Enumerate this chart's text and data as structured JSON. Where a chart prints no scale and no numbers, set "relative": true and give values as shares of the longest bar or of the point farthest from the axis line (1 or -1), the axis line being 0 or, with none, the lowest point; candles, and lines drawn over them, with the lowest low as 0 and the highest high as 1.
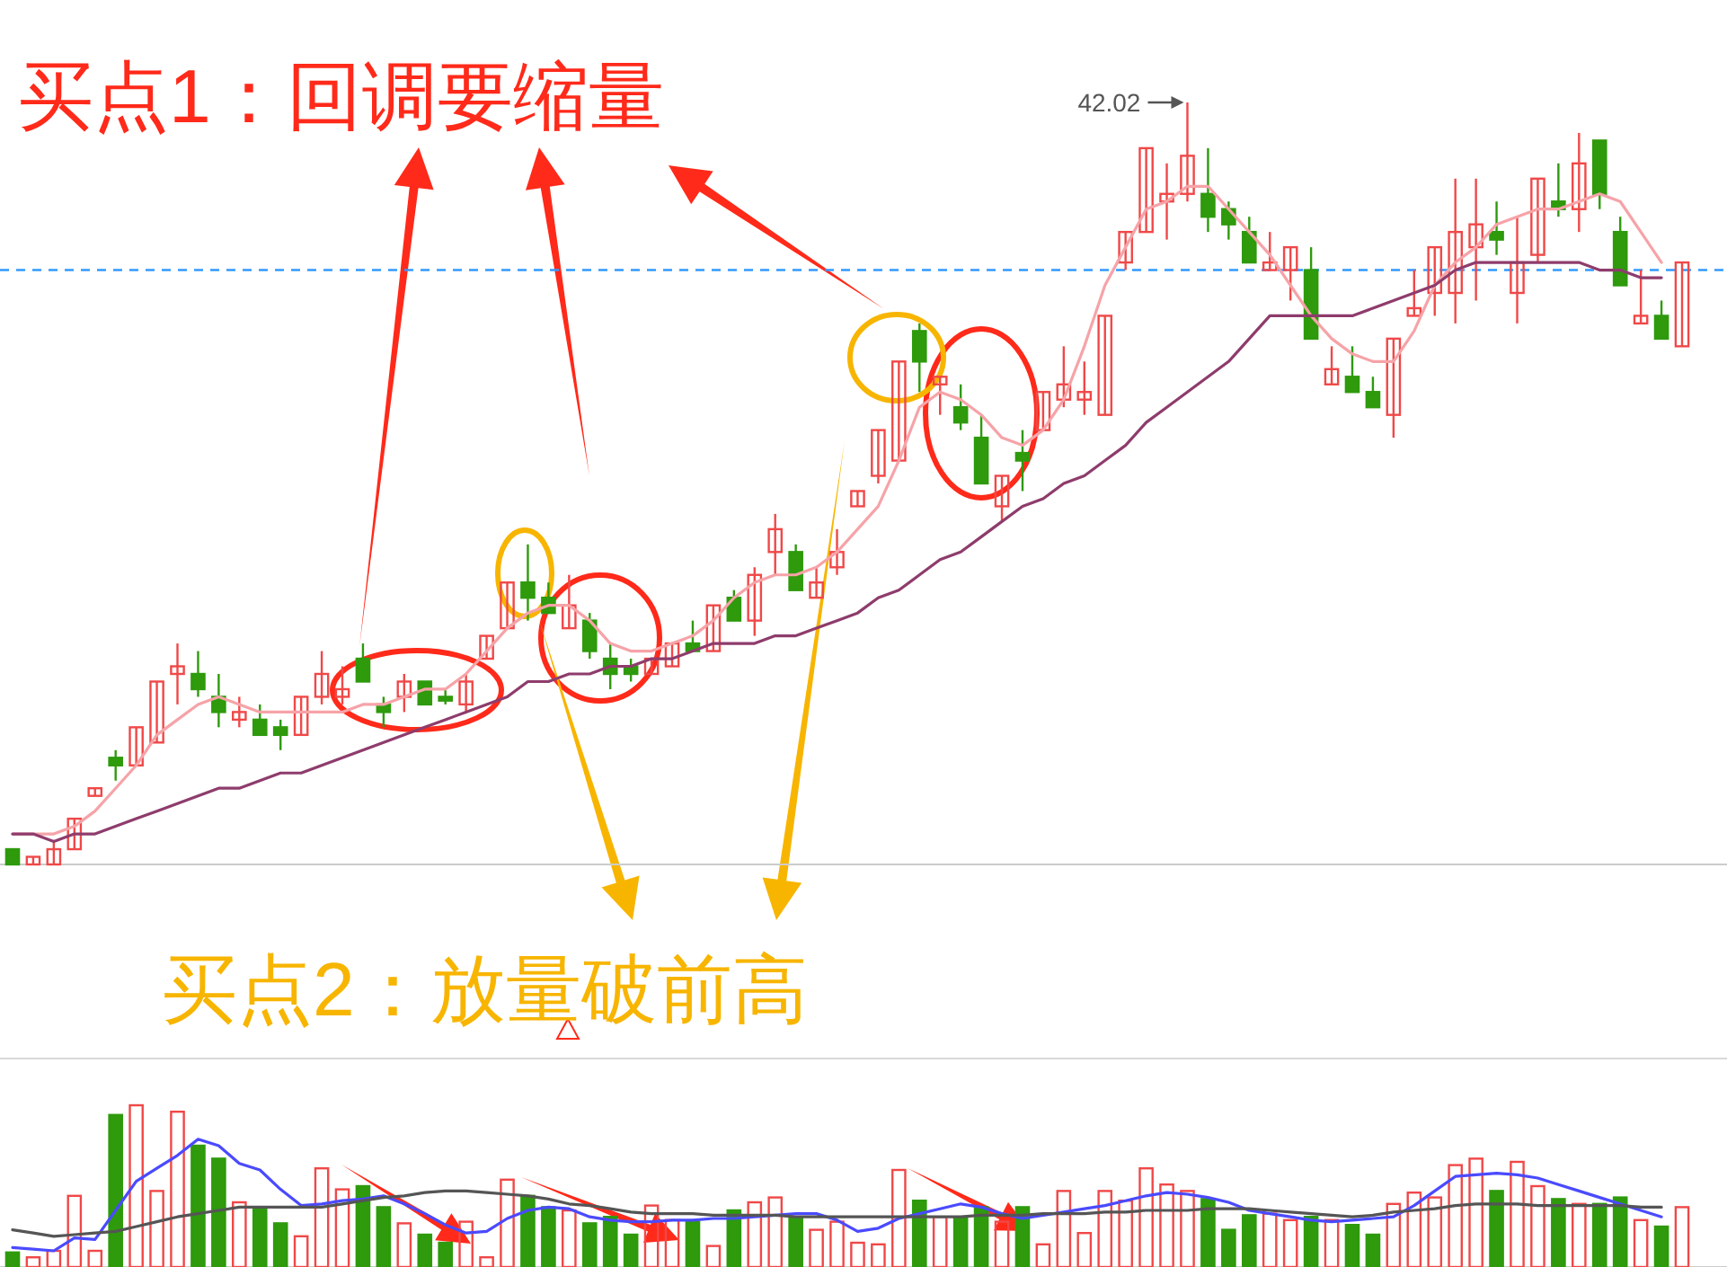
{
  "chart_data": [
    {
      "type": "candlestick",
      "relative": true,
      "categories": [
        null,
        null,
        null,
        null,
        null,
        null,
        null,
        null,
        null,
        null,
        null,
        null,
        null,
        null,
        null,
        null,
        null,
        null,
        null,
        null,
        null,
        null,
        null,
        null,
        null,
        null,
        null,
        null,
        null,
        null,
        null,
        null,
        null,
        null,
        null,
        null,
        null,
        null,
        null,
        null,
        null,
        null,
        null,
        null,
        null,
        null,
        null,
        null,
        null,
        null,
        null,
        null,
        null,
        null,
        null,
        null,
        null,
        null,
        null,
        null,
        null,
        null,
        null,
        null,
        null,
        null,
        null,
        null,
        null,
        null,
        null,
        null,
        null,
        null,
        null,
        null,
        null,
        null,
        null,
        null,
        null,
        null
      ],
      "ohlc": [
        [
          0.02,
          0.02,
          0.0,
          0.0
        ],
        [
          0.0,
          0.01,
          0.0,
          0.01
        ],
        [
          0.0,
          0.03,
          0.0,
          0.02
        ],
        [
          0.02,
          0.06,
          0.02,
          0.06
        ],
        [
          0.09,
          0.1,
          0.09,
          0.1
        ],
        [
          0.14,
          0.15,
          0.11,
          0.13
        ],
        [
          0.13,
          0.18,
          0.13,
          0.18
        ],
        [
          0.16,
          0.24,
          0.16,
          0.24
        ],
        [
          0.25,
          0.29,
          0.21,
          0.26
        ],
        [
          0.25,
          0.28,
          0.22,
          0.23
        ],
        [
          0.22,
          0.25,
          0.18,
          0.2
        ],
        [
          0.19,
          0.22,
          0.18,
          0.2
        ],
        [
          0.19,
          0.21,
          0.17,
          0.17
        ],
        [
          0.18,
          0.19,
          0.15,
          0.17
        ],
        [
          0.17,
          0.22,
          0.17,
          0.22
        ],
        [
          0.22,
          0.28,
          0.21,
          0.25
        ],
        [
          0.22,
          0.26,
          0.21,
          0.23
        ],
        [
          0.27,
          0.29,
          0.24,
          0.24
        ],
        [
          0.21,
          0.22,
          0.18,
          0.2
        ],
        [
          0.22,
          0.25,
          0.2,
          0.24
        ],
        [
          0.24,
          0.24,
          0.21,
          0.21
        ],
        [
          0.22,
          0.23,
          0.21,
          0.215
        ],
        [
          0.21,
          0.25,
          0.2,
          0.24
        ],
        [
          0.27,
          0.3,
          0.27,
          0.3
        ],
        [
          0.31,
          0.37,
          0.31,
          0.37
        ],
        [
          0.37,
          0.42,
          0.32,
          0.35
        ],
        [
          0.35,
          0.37,
          0.33,
          0.33
        ],
        [
          0.31,
          0.38,
          0.31,
          0.34
        ],
        [
          0.32,
          0.33,
          0.27,
          0.28
        ],
        [
          0.27,
          0.29,
          0.23,
          0.25
        ],
        [
          0.26,
          0.27,
          0.24,
          0.25
        ],
        [
          0.25,
          0.27,
          0.25,
          0.27
        ],
        [
          0.26,
          0.29,
          0.26,
          0.29
        ],
        [
          0.29,
          0.32,
          0.28,
          0.28
        ],
        [
          0.28,
          0.34,
          0.28,
          0.34
        ],
        [
          0.35,
          0.36,
          0.32,
          0.32
        ],
        [
          0.32,
          0.39,
          0.3,
          0.38
        ],
        [
          0.41,
          0.46,
          0.38,
          0.44
        ],
        [
          0.41,
          0.42,
          0.36,
          0.36
        ],
        [
          0.35,
          0.39,
          0.35,
          0.37
        ],
        [
          0.39,
          0.44,
          0.38,
          0.41
        ],
        [
          0.47,
          0.49,
          0.47,
          0.49
        ],
        [
          0.51,
          0.57,
          0.5,
          0.57
        ],
        [
          0.53,
          0.66,
          0.53,
          0.66
        ],
        [
          0.7,
          0.71,
          0.62,
          0.66
        ],
        [
          0.63,
          0.64,
          0.59,
          0.64
        ],
        [
          0.6,
          0.63,
          0.57,
          0.58
        ],
        [
          0.56,
          0.59,
          0.5,
          0.5
        ],
        [
          0.47,
          0.51,
          0.45,
          0.51
        ],
        [
          0.54,
          0.57,
          0.49,
          0.53
        ],
        [
          0.57,
          0.62,
          0.57,
          0.62
        ],
        [
          0.61,
          0.68,
          0.6,
          0.63
        ],
        [
          0.61,
          0.66,
          0.59,
          0.62
        ],
        [
          0.59,
          0.72,
          0.59,
          0.72
        ],
        [
          0.79,
          0.83,
          0.78,
          0.83
        ],
        [
          0.83,
          0.94,
          0.83,
          0.94
        ],
        [
          0.87,
          0.92,
          0.82,
          0.88
        ],
        [
          0.88,
          1.0,
          0.87,
          0.93
        ],
        [
          0.88,
          0.94,
          0.83,
          0.85
        ],
        [
          0.86,
          0.87,
          0.82,
          0.84
        ],
        [
          0.83,
          0.85,
          0.79,
          0.79
        ],
        [
          0.78,
          0.83,
          0.78,
          0.79
        ],
        [
          0.78,
          0.81,
          0.74,
          0.81
        ],
        [
          0.78,
          0.81,
          0.69,
          0.69
        ],
        [
          0.63,
          0.68,
          0.63,
          0.65
        ],
        [
          0.64,
          0.68,
          0.62,
          0.62
        ],
        [
          0.62,
          0.64,
          0.6,
          0.6
        ],
        [
          0.59,
          0.69,
          0.56,
          0.69
        ],
        [
          0.72,
          0.78,
          0.72,
          0.73
        ],
        [
          0.75,
          0.81,
          0.72,
          0.81
        ],
        [
          0.75,
          0.9,
          0.71,
          0.83
        ],
        [
          0.81,
          0.9,
          0.74,
          0.84
        ],
        [
          0.83,
          0.87,
          0.8,
          0.82
        ],
        [
          0.75,
          0.85,
          0.71,
          0.79
        ],
        [
          0.8,
          0.9,
          0.79,
          0.9
        ],
        [
          0.87,
          0.92,
          0.85,
          0.86
        ],
        [
          0.86,
          0.96,
          0.83,
          0.92
        ],
        [
          0.95,
          0.95,
          0.86,
          0.88
        ],
        [
          0.83,
          0.85,
          0.76,
          0.76
        ],
        [
          0.71,
          0.78,
          0.71,
          0.72
        ],
        [
          0.72,
          0.74,
          0.69,
          0.69
        ],
        [
          0.68,
          0.79,
          0.68,
          0.79
        ]
      ],
      "series": [
        {
          "type": "line",
          "color": "#f6a3a8",
          "values": [
            0.04,
            0.04,
            0.04,
            0.05,
            0.07,
            0.1,
            0.13,
            0.17,
            0.19,
            0.21,
            0.22,
            0.21,
            0.2,
            0.2,
            0.2,
            0.2,
            0.2,
            0.21,
            0.21,
            0.22,
            0.23,
            0.23,
            0.25,
            0.28,
            0.31,
            0.33,
            0.34,
            0.34,
            0.32,
            0.29,
            0.28,
            0.28,
            0.29,
            0.3,
            0.32,
            0.35,
            0.37,
            0.38,
            0.38,
            0.39,
            0.41,
            0.44,
            0.47,
            0.53,
            0.6,
            0.62,
            0.61,
            0.59,
            0.56,
            0.55,
            0.57,
            0.61,
            0.68,
            0.76,
            0.81,
            0.86,
            0.87,
            0.89,
            0.89,
            0.86,
            0.83,
            0.8,
            0.76,
            0.72,
            0.69,
            0.67,
            0.66,
            0.66,
            0.7,
            0.76,
            0.79,
            0.81,
            0.84,
            0.85,
            0.86,
            0.86,
            0.87,
            0.88,
            0.87,
            0.83,
            0.79,
            null
          ]
        },
        {
          "type": "line",
          "color": "#8e3c6c",
          "values": [
            0.04,
            0.04,
            0.03,
            0.04,
            0.04,
            0.05,
            0.06,
            0.07,
            0.08,
            0.09,
            0.1,
            0.1,
            0.11,
            0.12,
            0.12,
            0.13,
            0.14,
            0.15,
            0.16,
            0.17,
            0.18,
            0.19,
            0.2,
            0.21,
            0.22,
            0.24,
            0.24,
            0.25,
            0.25,
            0.26,
            0.26,
            0.27,
            0.27,
            0.28,
            0.29,
            0.29,
            0.29,
            0.3,
            0.3,
            0.31,
            0.32,
            0.33,
            0.35,
            0.36,
            0.38,
            0.4,
            0.41,
            0.43,
            0.45,
            0.47,
            0.48,
            0.5,
            0.51,
            0.53,
            0.55,
            0.58,
            0.6,
            0.62,
            0.64,
            0.66,
            0.69,
            0.72,
            0.72,
            0.72,
            0.72,
            0.72,
            0.73,
            0.74,
            0.75,
            0.76,
            0.78,
            0.79,
            0.79,
            0.79,
            0.79,
            0.79,
            0.79,
            0.78,
            0.78,
            0.77,
            0.77,
            null
          ]
        }
      ],
      "ref_lines": [
        {
          "axis": "y",
          "value": 0.78,
          "color": "#3399ff",
          "line_style": "dashed"
        }
      ],
      "annotations": [
        "买点1：回调要缩量",
        "买点2：放量破前高",
        "42.02"
      ]
    },
    {
      "type": "bar",
      "relative": true,
      "categories": [
        null,
        null,
        null,
        null,
        null,
        null,
        null,
        null,
        null,
        null,
        null,
        null,
        null,
        null,
        null,
        null,
        null,
        null,
        null,
        null,
        null,
        null,
        null,
        null,
        null,
        null,
        null,
        null,
        null,
        null,
        null,
        null,
        null,
        null,
        null,
        null,
        null,
        null,
        null,
        null,
        null,
        null,
        null,
        null,
        null,
        null,
        null,
        null,
        null,
        null,
        null,
        null,
        null,
        null,
        null,
        null,
        null,
        null,
        null,
        null,
        null,
        null,
        null,
        null,
        null,
        null,
        null,
        null,
        null,
        null,
        null,
        null,
        null,
        null,
        null,
        null,
        null,
        null,
        null,
        null,
        null,
        null
      ],
      "series": [
        {
          "type": "bar",
          "values": [
            0.09,
            0.06,
            0.1,
            0.44,
            0.1,
            0.94,
            1.0,
            0.47,
            0.96,
            0.75,
            0.67,
            0.4,
            0.36,
            0.27,
            0.19,
            0.61,
            0.48,
            0.5,
            0.37,
            0.27,
            0.2,
            0.15,
            0.28,
            0.06,
            0.54,
            0.44,
            0.37,
            0.35,
            0.27,
            0.31,
            0.2,
            0.38,
            0.29,
            0.28,
            0.13,
            0.35,
            0.4,
            0.43,
            0.31,
            0.23,
            0.28,
            0.15,
            0.14,
            0.6,
            0.41,
            0.31,
            0.31,
            0.37,
            0.28,
            0.37,
            0.14,
            0.47,
            0.21,
            0.47,
            0.41,
            0.61,
            0.51,
            0.47,
            0.42,
            0.23,
            0.32,
            0.33,
            0.29,
            0.31,
            0.29,
            0.26,
            0.2,
            0.39,
            0.46,
            0.43,
            0.63,
            0.67,
            0.47,
            0.65,
            0.5,
            0.42,
            0.39,
            0.39,
            0.43,
            0.29,
            0.25,
            0.37
          ],
          "colors": [
            "#2e9a0c",
            "#f04848",
            "#f04848",
            "#f04848",
            "#f04848",
            "#2e9a0c",
            "#f04848",
            "#f04848",
            "#f04848",
            "#2e9a0c",
            "#2e9a0c",
            "#f04848",
            "#2e9a0c",
            "#2e9a0c",
            "#f04848",
            "#f04848",
            "#f04848",
            "#2e9a0c",
            "#2e9a0c",
            "#f04848",
            "#2e9a0c",
            "#2e9a0c",
            "#f04848",
            "#f04848",
            "#f04848",
            "#2e9a0c",
            "#2e9a0c",
            "#f04848",
            "#2e9a0c",
            "#2e9a0c",
            "#2e9a0c",
            "#f04848",
            "#f04848",
            "#2e9a0c",
            "#f04848",
            "#2e9a0c",
            "#f04848",
            "#f04848",
            "#2e9a0c",
            "#f04848",
            "#f04848",
            "#f04848",
            "#f04848",
            "#f04848",
            "#2e9a0c",
            "#f04848",
            "#2e9a0c",
            "#2e9a0c",
            "#f04848",
            "#2e9a0c",
            "#f04848",
            "#f04848",
            "#f04848",
            "#f04848",
            "#f04848",
            "#f04848",
            "#f04848",
            "#f04848",
            "#2e9a0c",
            "#2e9a0c",
            "#2e9a0c",
            "#f04848",
            "#f04848",
            "#2e9a0c",
            "#f04848",
            "#2e9a0c",
            "#2e9a0c",
            "#f04848",
            "#f04848",
            "#f04848",
            "#f04848",
            "#f04848",
            "#2e9a0c",
            "#f04848",
            "#f04848",
            "#2e9a0c",
            "#f04848",
            "#2e9a0c",
            "#2e9a0c",
            "#f04848",
            "#2e9a0c",
            "#f04848"
          ]
        },
        {
          "type": "line",
          "color": "#4a4aff",
          "values": [
            0.12,
            0.11,
            0.1,
            0.18,
            0.17,
            0.35,
            0.53,
            0.61,
            0.69,
            0.79,
            0.75,
            0.64,
            0.6,
            0.48,
            0.38,
            0.39,
            0.41,
            0.42,
            0.44,
            0.39,
            0.33,
            0.26,
            0.21,
            0.22,
            0.3,
            0.35,
            0.37,
            0.36,
            0.31,
            0.29,
            0.28,
            0.28,
            0.29,
            0.29,
            0.3,
            0.3,
            0.31,
            0.32,
            0.33,
            0.33,
            0.29,
            0.22,
            0.24,
            0.3,
            0.33,
            0.36,
            0.39,
            0.37,
            0.33,
            0.3,
            0.32,
            0.34,
            0.36,
            0.38,
            0.41,
            0.44,
            0.46,
            0.45,
            0.43,
            0.4,
            0.35,
            0.33,
            0.31,
            0.29,
            0.28,
            0.29,
            0.3,
            0.31,
            0.38,
            0.47,
            0.56,
            0.57,
            0.58,
            0.57,
            0.55,
            0.51,
            0.47,
            0.43,
            0.39,
            0.35,
            0.31,
            null
          ]
        },
        {
          "type": "line",
          "color": "#555555",
          "values": [
            0.23,
            0.21,
            0.19,
            0.2,
            0.21,
            0.22,
            0.25,
            0.28,
            0.31,
            0.33,
            0.35,
            0.37,
            0.37,
            0.37,
            0.37,
            0.37,
            0.39,
            0.41,
            0.43,
            0.44,
            0.46,
            0.47,
            0.47,
            0.46,
            0.45,
            0.44,
            0.42,
            0.39,
            0.38,
            0.36,
            0.34,
            0.33,
            0.33,
            0.33,
            0.32,
            0.32,
            0.32,
            0.32,
            0.31,
            0.31,
            0.31,
            0.31,
            0.31,
            0.31,
            0.31,
            0.31,
            0.31,
            0.32,
            0.32,
            0.32,
            0.33,
            0.33,
            0.33,
            0.34,
            0.34,
            0.35,
            0.35,
            0.35,
            0.36,
            0.36,
            0.36,
            0.35,
            0.34,
            0.33,
            0.32,
            0.31,
            0.32,
            0.34,
            0.35,
            0.36,
            0.38,
            0.39,
            0.39,
            0.39,
            0.38,
            0.38,
            0.38,
            0.38,
            0.38,
            0.37,
            0.37,
            null
          ]
        }
      ]
    }
  ]
}
